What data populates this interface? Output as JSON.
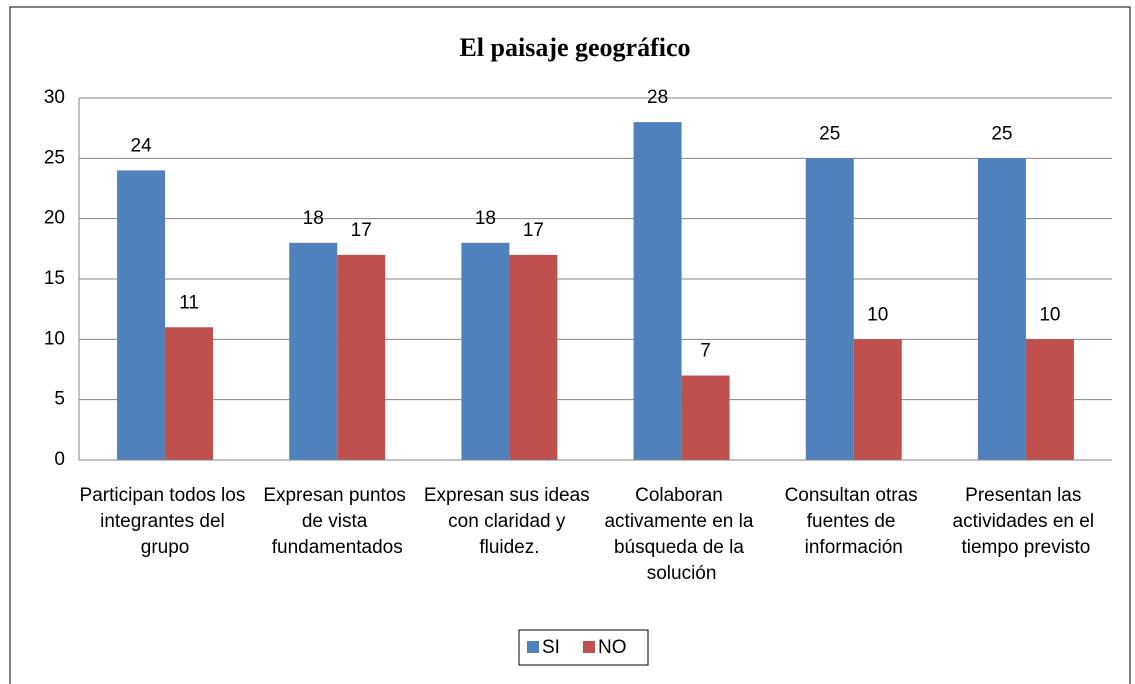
{
  "chart_data": {
    "type": "bar",
    "title": "El paisaje geográfico",
    "categories": [
      "Participan todos los integrantes del grupo",
      "Expresan puntos de vista fundamentados",
      "Expresan sus ideas con claridad y fluidez.",
      "Colaboran activamente en la búsqueda de la solución",
      "Consultan otras fuentes de información",
      "Presentan las actividades en el tiempo previsto"
    ],
    "series": [
      {
        "name": "SI",
        "color": "#4f81bd",
        "values": [
          24,
          18,
          18,
          28,
          25,
          25
        ]
      },
      {
        "name": "NO",
        "color": "#c0504d",
        "values": [
          11,
          17,
          17,
          7,
          10,
          10
        ]
      }
    ],
    "ylim": [
      0,
      30
    ],
    "yticks": [
      0,
      5,
      10,
      15,
      20,
      25,
      30
    ],
    "grid": true,
    "legend": "bottom"
  }
}
